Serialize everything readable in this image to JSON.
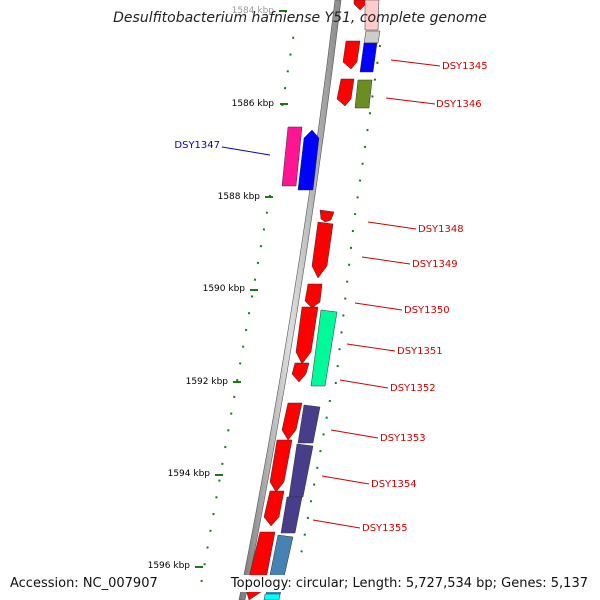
{
  "title": "Desulfitobacterium hafniense Y51, complete genome",
  "accession": "Accession: NC_007907",
  "stats": "Topology: circular; Length: 5,727,534 bp; Genes: 5,137",
  "colors": {
    "backbone": "#999999",
    "tick": "#1a7a1a",
    "forward_label": "#d40000",
    "reverse_label": "#0000c8"
  },
  "kbp_labels": [
    "1584 kbp",
    "1586 kbp",
    "1588 kbp",
    "1590 kbp",
    "1592 kbp",
    "1594 kbp",
    "1596 kbp"
  ],
  "gene_labels": [
    "DSY1345",
    "DSY1346",
    "DSY1347",
    "DSY1348",
    "DSY1349",
    "DSY1350",
    "DSY1351",
    "DSY1352",
    "DSY1353",
    "DSY1354",
    "DSY1355"
  ],
  "gene_colors": [
    "#ff0000",
    "#0000ff",
    "#6b8e23",
    "#ff1493",
    "#00fa9a",
    "#483d8b",
    "#4682b4",
    "#00ffff"
  ]
}
